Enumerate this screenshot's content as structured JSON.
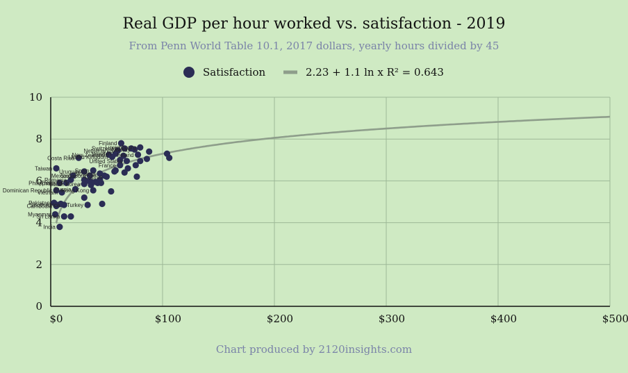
{
  "chart_data": {
    "type": "scatter",
    "title": "Real GDP per hour worked vs. satisfaction - 2019",
    "subtitle": "From Penn World Table 10.1, 2017 dollars, yearly hours divided by 45",
    "footer": "Chart produced by 2120insights.com",
    "xlim": [
      0,
      500
    ],
    "ylim": [
      0,
      10
    ],
    "x_ticks": [
      0,
      100,
      200,
      300,
      400,
      500
    ],
    "x_tick_labels": [
      "$0",
      "$100",
      "$200",
      "$300",
      "$400",
      "$500"
    ],
    "y_ticks": [
      0,
      2,
      4,
      6,
      8,
      10
    ],
    "y_tick_labels": [
      "0",
      "2",
      "4",
      "6",
      "8",
      "10"
    ],
    "legend": {
      "series_label": "Satisfaction",
      "trend_label": "2.23 + 1.1 ln x R² = 0.643",
      "position": "top"
    },
    "colors": {
      "point": "#2b2d55",
      "trend": "#8e9e8b",
      "grid": "#9db897",
      "background": "#cfeac3"
    },
    "trendline": {
      "a": 2.23,
      "b": 1.1,
      "x_start": 5,
      "x_end": 500
    },
    "points": [
      {
        "x": 63,
        "y": 7.8,
        "label": "Finland"
      },
      {
        "x": 66,
        "y": 7.55,
        "label": "Switzerland"
      },
      {
        "x": 60,
        "y": 7.45,
        "label": "Netherlands"
      },
      {
        "x": 75,
        "y": 7.5,
        "label": "Norway"
      },
      {
        "x": 80,
        "y": 7.6,
        "label": "Luxembourg"
      },
      {
        "x": 58,
        "y": 7.3,
        "label": "Sweden"
      },
      {
        "x": 52,
        "y": 7.25,
        "label": "New Zealand"
      },
      {
        "x": 55,
        "y": 7.15,
        "label": "United Kingdom"
      },
      {
        "x": 78,
        "y": 7.25,
        "label": "Ireland"
      },
      {
        "x": 68,
        "y": 6.95,
        "label": "United States"
      },
      {
        "x": 62,
        "y": 6.75,
        "label": "France"
      },
      {
        "x": 25,
        "y": 7.1,
        "label": "Costa Rica"
      },
      {
        "x": 5,
        "y": 6.6,
        "label": "Taiwan"
      },
      {
        "x": 38,
        "y": 6.5,
        "label": "Spain"
      },
      {
        "x": 30,
        "y": 6.45,
        "label": "Uruguay"
      },
      {
        "x": 44,
        "y": 6.35,
        "label": "Slovenia"
      },
      {
        "x": 35,
        "y": 6.25,
        "label": "Singapore"
      },
      {
        "x": 50,
        "y": 6.2,
        "label": "Cyprus"
      },
      {
        "x": 20,
        "y": 6.25,
        "label": "Mexico"
      },
      {
        "x": 18,
        "y": 6.05,
        "label": "Romania"
      },
      {
        "x": 8,
        "y": 5.9,
        "label": "Philippines"
      },
      {
        "x": 14,
        "y": 5.9,
        "label": "Thailand"
      },
      {
        "x": 30,
        "y": 5.85,
        "label": "South Korea"
      },
      {
        "x": 5,
        "y": 5.55,
        "label": "Dominican Republic"
      },
      {
        "x": 22,
        "y": 5.6,
        "label": "Russia"
      },
      {
        "x": 38,
        "y": 5.55,
        "label": "Hong Kong"
      },
      {
        "x": 10,
        "y": 5.45,
        "label": "Vietnam"
      },
      {
        "x": 3,
        "y": 4.95,
        "label": "Pakistan"
      },
      {
        "x": 12,
        "y": 4.85,
        "label": "South Africa"
      },
      {
        "x": 33,
        "y": 4.85,
        "label": "Turkey"
      },
      {
        "x": 5,
        "y": 4.8,
        "label": "Cambodia"
      },
      {
        "x": 4,
        "y": 4.4,
        "label": "Myanmar"
      },
      {
        "x": 12,
        "y": 4.3,
        "label": "Sri Lanka"
      },
      {
        "x": 8,
        "y": 3.8,
        "label": "India"
      },
      {
        "x": 104,
        "y": 7.3,
        "label": ""
      },
      {
        "x": 106,
        "y": 7.1,
        "label": ""
      },
      {
        "x": 88,
        "y": 7.4,
        "label": ""
      },
      {
        "x": 86,
        "y": 7.05,
        "label": ""
      },
      {
        "x": 80,
        "y": 6.95,
        "label": ""
      },
      {
        "x": 76,
        "y": 6.75,
        "label": ""
      },
      {
        "x": 69,
        "y": 6.6,
        "label": ""
      },
      {
        "x": 66,
        "y": 6.4,
        "label": ""
      },
      {
        "x": 77,
        "y": 6.2,
        "label": ""
      },
      {
        "x": 58,
        "y": 6.5,
        "label": ""
      },
      {
        "x": 57,
        "y": 6.45,
        "label": ""
      },
      {
        "x": 54,
        "y": 5.5,
        "label": ""
      },
      {
        "x": 46,
        "y": 4.9,
        "label": ""
      },
      {
        "x": 18,
        "y": 4.3,
        "label": ""
      },
      {
        "x": 9,
        "y": 4.9,
        "label": ""
      },
      {
        "x": 6,
        "y": 4.85,
        "label": ""
      },
      {
        "x": 30,
        "y": 5.2,
        "label": ""
      },
      {
        "x": 36,
        "y": 5.8,
        "label": ""
      },
      {
        "x": 36,
        "y": 5.95,
        "label": ""
      },
      {
        "x": 40,
        "y": 5.95,
        "label": ""
      },
      {
        "x": 42,
        "y": 5.9,
        "label": ""
      },
      {
        "x": 44,
        "y": 6.05,
        "label": ""
      },
      {
        "x": 45,
        "y": 5.9,
        "label": ""
      },
      {
        "x": 30,
        "y": 6.05,
        "label": ""
      },
      {
        "x": 34,
        "y": 6.0,
        "label": ""
      },
      {
        "x": 48,
        "y": 6.25,
        "label": ""
      },
      {
        "x": 62,
        "y": 7.0,
        "label": ""
      },
      {
        "x": 65,
        "y": 7.2,
        "label": ""
      },
      {
        "x": 72,
        "y": 7.55,
        "label": ""
      }
    ]
  }
}
